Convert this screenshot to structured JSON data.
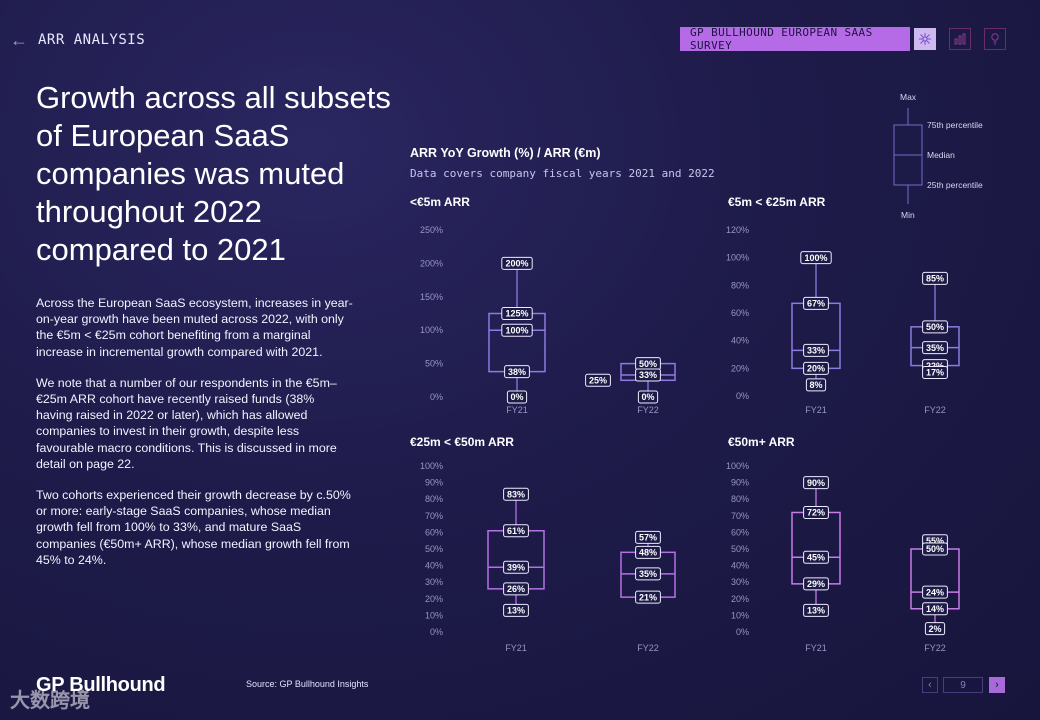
{
  "header": {
    "section_label": "ARR ANALYSIS",
    "survey_badge": "GP BULLHOUND EUROPEAN SAAS SURVEY"
  },
  "headline": "Growth across all subsets of European SaaS companies was muted throughout 2022 compared to 2021",
  "body": {
    "p1": "Across the European SaaS ecosystem, increases in year-on-year growth have been muted across 2022, with only the €5m < €25m cohort benefiting from a marginal increase in incremental growth compared with 2021.",
    "p2": "We note that a number of our respondents in the €5m–€25m ARR cohort have recently raised funds (38% having raised in 2022 or later), which has allowed companies to invest in their growth, despite less favourable macro conditions. This is discussed in more detail on page 22.",
    "p3": "Two cohorts experienced their growth decrease by c.50% or more: early-stage SaaS companies, whose median growth fell from 100% to 33%, and mature SaaS companies (€50m+ ARR), whose median growth fell from 45% to 24%."
  },
  "footer": {
    "logo": "GP Bullhound",
    "watermark": "大数跨境",
    "source": "Source: GP Bullhound Insights",
    "page_number": "9",
    "prev_symbol": "‹",
    "next_symbol": "›"
  },
  "colors": {
    "fy21": "#8e7ae0",
    "fy22": "#b570e6",
    "cohort4": "#c77ce8"
  },
  "chart_data": {
    "type": "boxplot",
    "title": "ARR YoY Growth (%) / ARR (€m)",
    "subtitle": "Data covers company fiscal years 2021 and 2022",
    "legend": {
      "max": "Max",
      "q3": "75th percentile",
      "median": "Median",
      "q1": "25th percentile",
      "min": "Min"
    },
    "panels": [
      {
        "title": "<€5m ARR",
        "y_ticks": [
          "0%",
          "50%",
          "100%",
          "150%",
          "200%",
          "250%"
        ],
        "ylim": [
          0,
          250
        ],
        "categories": [
          "FY21",
          "FY22"
        ],
        "boxes": [
          {
            "min": 0,
            "q1": 38,
            "median": 100,
            "q3": 125,
            "max": 200,
            "labels": {
              "min": "0%",
              "q1": "38%",
              "median": "100%",
              "q3": "125%",
              "max": "200%"
            }
          },
          {
            "min": 0,
            "q1": 25,
            "median": 33,
            "q3": 50,
            "max": 50,
            "labels": {
              "min": "0%",
              "q1": "25%",
              "median": "33%",
              "q3": "50%"
            }
          }
        ]
      },
      {
        "title": "€5m < €25m ARR",
        "y_ticks": [
          "0%",
          "20%",
          "40%",
          "60%",
          "80%",
          "100%",
          "120%"
        ],
        "ylim": [
          0,
          120
        ],
        "categories": [
          "FY21",
          "FY22"
        ],
        "boxes": [
          {
            "min": 8,
            "q1": 20,
            "median": 33,
            "q3": 67,
            "max": 100,
            "labels": {
              "min": "8%",
              "q1": "20%",
              "median": "33%",
              "q3": "67%",
              "max": "100%"
            }
          },
          {
            "min": 17,
            "q1": 22,
            "median": 35,
            "q3": 50,
            "max": 85,
            "labels": {
              "min": "17%",
              "q1": "22%",
              "median": "35%",
              "q3": "50%",
              "max": "85%"
            }
          }
        ]
      },
      {
        "title": "€25m < €50m ARR",
        "y_ticks": [
          "0%",
          "10%",
          "20%",
          "30%",
          "40%",
          "50%",
          "60%",
          "70%",
          "80%",
          "90%",
          "100%"
        ],
        "ylim": [
          0,
          100
        ],
        "categories": [
          "FY21",
          "FY22"
        ],
        "boxes": [
          {
            "min": 13,
            "q1": 26,
            "median": 39,
            "q3": 61,
            "max": 83,
            "labels": {
              "min": "13%",
              "q1": "26%",
              "median": "39%",
              "q3": "61%",
              "max": "83%"
            }
          },
          {
            "min": 21,
            "q1": 21,
            "median": 35,
            "q3": 48,
            "max": 57,
            "labels": {
              "min": "21%",
              "median": "35%",
              "q3": "48%",
              "max": "57%"
            }
          }
        ]
      },
      {
        "title": "€50m+ ARR",
        "y_ticks": [
          "0%",
          "10%",
          "20%",
          "30%",
          "40%",
          "50%",
          "60%",
          "70%",
          "80%",
          "90%",
          "100%"
        ],
        "ylim": [
          0,
          100
        ],
        "categories": [
          "FY21",
          "FY22"
        ],
        "boxes": [
          {
            "min": 13,
            "q1": 29,
            "median": 45,
            "q3": 72,
            "max": 90,
            "labels": {
              "min": "13%",
              "q1": "29%",
              "median": "45%",
              "q3": "72%",
              "max": "90%"
            }
          },
          {
            "min": 2,
            "q1": 14,
            "median": 24,
            "q3": 50,
            "max": 55,
            "labels": {
              "min": "2%",
              "q1": "14%",
              "median": "24%",
              "q3": "50%",
              "max": "55%"
            }
          }
        ]
      }
    ]
  }
}
